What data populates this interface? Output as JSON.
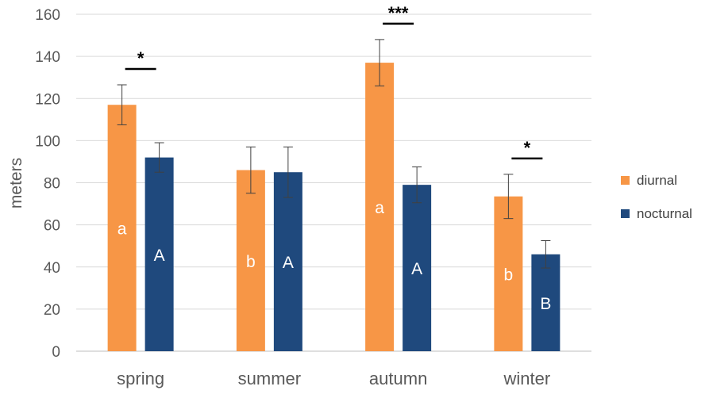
{
  "chart_data": {
    "type": "bar",
    "categories": [
      "spring",
      "summer",
      "autumn",
      "winter"
    ],
    "series": [
      {
        "name": "diurnal",
        "color": "#F79646",
        "values": [
          117,
          86,
          137,
          73.5
        ],
        "error": [
          9.5,
          11,
          11,
          10.5
        ],
        "group_letters": [
          "a",
          "b",
          "a",
          "b"
        ]
      },
      {
        "name": "nocturnal",
        "color": "#1F497D",
        "values": [
          92,
          85,
          79,
          46
        ],
        "error": [
          7,
          12,
          8.5,
          6.5
        ],
        "group_letters": [
          "A",
          "A",
          "A",
          "B"
        ]
      }
    ],
    "significance": [
      "*",
      "",
      "***",
      "*"
    ],
    "ylabel": "meters",
    "xlabel": "",
    "title": "",
    "ylim": [
      0,
      160
    ],
    "yticks": [
      "0",
      "20",
      "40",
      "60",
      "80",
      "100",
      "120",
      "140",
      "160"
    ],
    "grid": true,
    "legend_position": "right"
  }
}
